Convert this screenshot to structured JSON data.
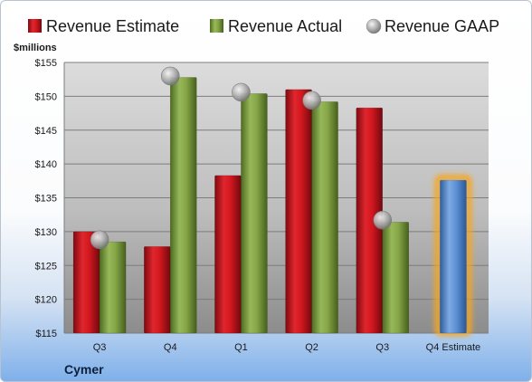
{
  "chart_data": {
    "type": "bar",
    "company": "Cymer",
    "unit_label": "$millions",
    "categories": [
      "Q3",
      "Q4",
      "Q1",
      "Q2",
      "Q3",
      "Q4 Estimate"
    ],
    "ylim": [
      115,
      155
    ],
    "yticks": [
      115,
      120,
      125,
      130,
      135,
      140,
      145,
      150,
      155
    ],
    "ytick_labels": [
      "$115",
      "$120",
      "$125",
      "$130",
      "$135",
      "$140",
      "$145",
      "$150",
      "$155"
    ],
    "grid": true,
    "legend_position": "top",
    "series": [
      {
        "name": "Revenue Estimate",
        "kind": "bar",
        "color": "#c0141c",
        "values": [
          130,
          127.8,
          138.3,
          151,
          148.3,
          null
        ]
      },
      {
        "name": "Revenue Actual",
        "kind": "bar",
        "color": "#7a9a3a",
        "values": [
          128.5,
          152.8,
          150.4,
          149.2,
          131.4,
          null
        ]
      },
      {
        "name": "Revenue GAAP",
        "kind": "marker",
        "color": "#a0a0a0",
        "values": [
          128.8,
          153,
          150.6,
          149.4,
          131.7,
          null
        ]
      }
    ],
    "estimate_bar": {
      "category_index": 5,
      "value": 137.6,
      "color": "#4f87d0",
      "glow": "#f5a623"
    }
  }
}
